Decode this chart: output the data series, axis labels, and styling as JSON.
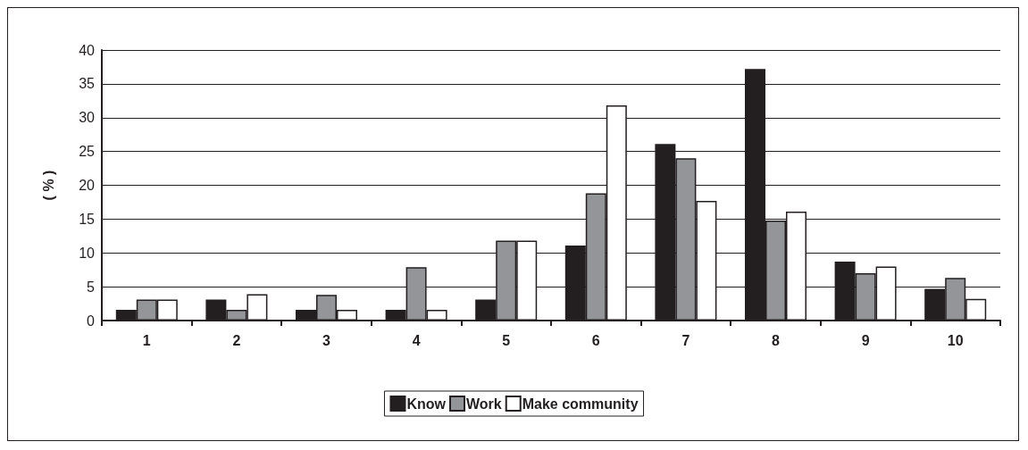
{
  "chart_data": {
    "type": "bar",
    "ylabel": "( % )",
    "categories": [
      "1",
      "2",
      "3",
      "4",
      "5",
      "6",
      "7",
      "8",
      "9",
      "10"
    ],
    "series": [
      {
        "name": "Know",
        "color": "#231f20",
        "values": [
          1.6,
          3.1,
          1.6,
          1.6,
          3.1,
          11.1,
          26.1,
          37.2,
          8.7,
          4.7
        ]
      },
      {
        "name": "Work",
        "color": "#939598",
        "values": [
          3.1,
          1.6,
          3.8,
          7.9,
          11.8,
          18.8,
          24.0,
          14.8,
          7.0,
          6.3
        ]
      },
      {
        "name": "Make community",
        "color": "#ffffff",
        "values": [
          3.1,
          3.9,
          1.6,
          1.6,
          11.8,
          31.8,
          17.7,
          16.1,
          8.0,
          3.2
        ]
      }
    ],
    "ylim": [
      0,
      40
    ],
    "yticks": [
      0,
      5,
      10,
      15,
      20,
      25,
      30,
      35,
      40
    ],
    "grid": "y",
    "legend": "bottom"
  }
}
